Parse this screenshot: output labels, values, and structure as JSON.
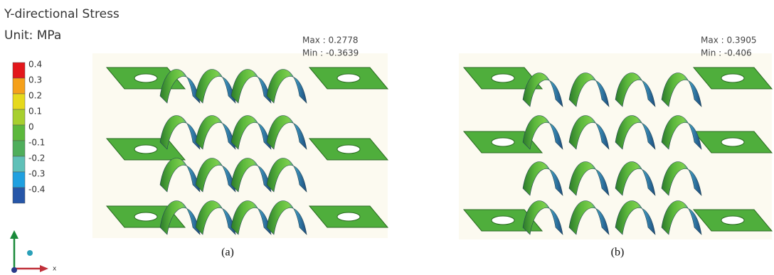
{
  "header": {
    "title": "Y-directional Stress",
    "unit": "Unit:  MPa"
  },
  "legend": [
    {
      "label": "0.4",
      "color": "#e3171b"
    },
    {
      "label": "0.3",
      "color": "#f5a01a"
    },
    {
      "label": "0.2",
      "color": "#e6d91c"
    },
    {
      "label": "0.1",
      "color": "#a7cf2e"
    },
    {
      "label": "0",
      "color": "#5cb83c"
    },
    {
      "label": "-0.1",
      "color": "#4fae5b"
    },
    {
      "label": "-0.2",
      "color": "#5fc0b8"
    },
    {
      "label": "-0.3",
      "color": "#1fa0e0"
    },
    {
      "label": "-0.4",
      "color": "#2656a8"
    }
  ],
  "panels": [
    {
      "max": "Max : 0.2778",
      "min": "Min : -0.3639",
      "caption": "(a)"
    },
    {
      "max": "Max : 0.3905",
      "min": "Min : -0.406",
      "caption": "(b)"
    }
  ]
}
